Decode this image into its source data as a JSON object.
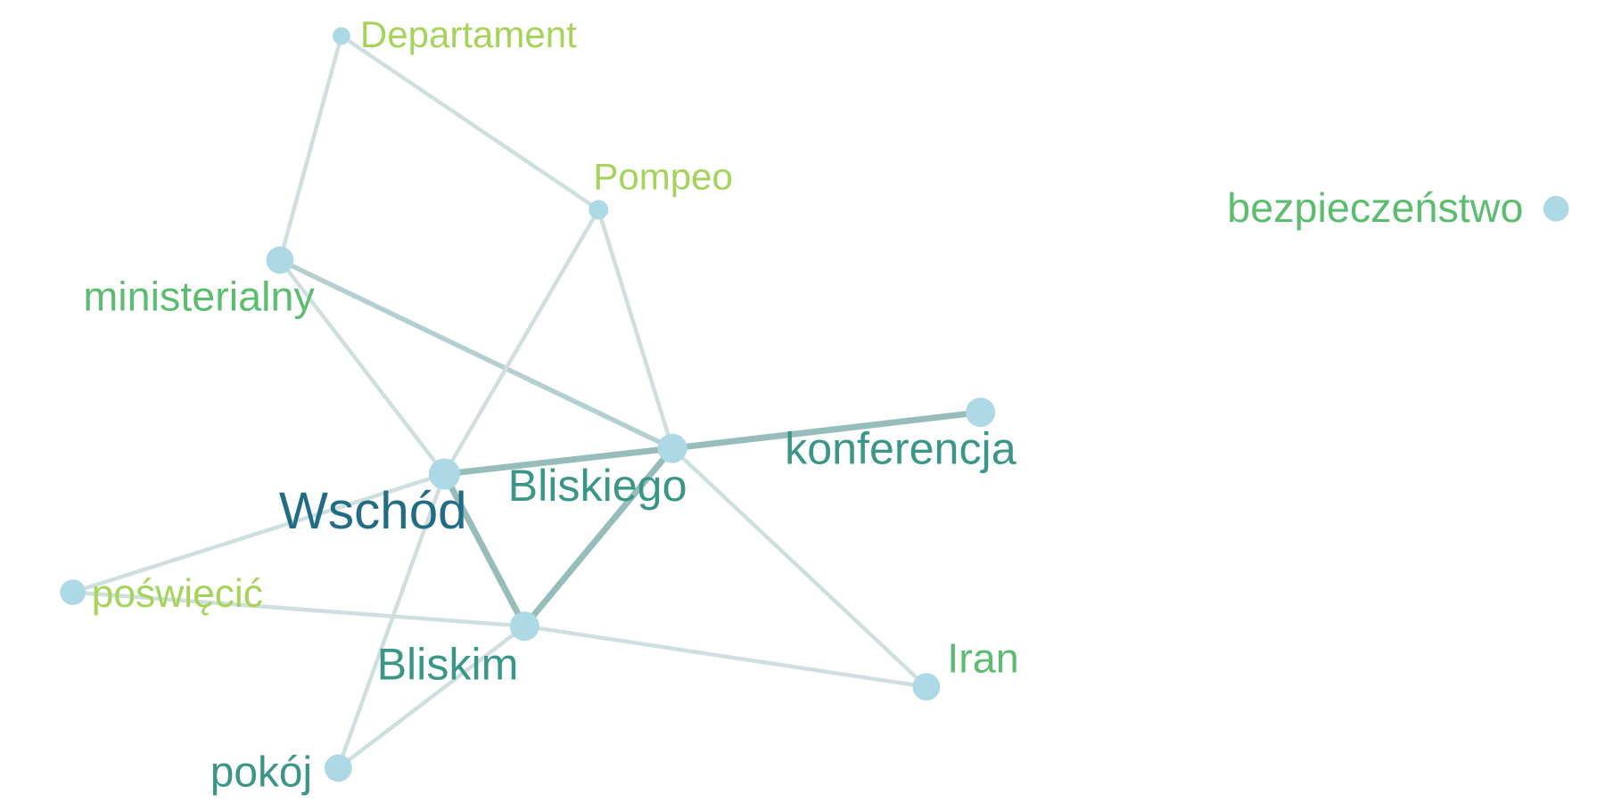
{
  "colors": {
    "background": "#ffffff",
    "node_fill": "#add8e6",
    "edge_light": "#cfdfe0",
    "edge_mid": "#b3cfcf",
    "edge_dark": "#97bdbb",
    "label_lightgreen": "#a6d35a",
    "label_green": "#5cbd70",
    "label_teal": "#3a9687",
    "label_darkteal": "#216d85"
  },
  "nodes": [
    {
      "id": "departament",
      "label": "Departament",
      "color": "label_lightgreen"
    },
    {
      "id": "pompeo",
      "label": "Pompeo",
      "color": "label_lightgreen"
    },
    {
      "id": "ministerialny",
      "label": "ministerialny",
      "color": "label_green"
    },
    {
      "id": "bezpieczenstwo",
      "label": "bezpieczeństwo",
      "color": "label_green"
    },
    {
      "id": "konferencja",
      "label": "konferencja",
      "color": "label_teal"
    },
    {
      "id": "bliskiego",
      "label": "Bliskiego",
      "color": "label_teal"
    },
    {
      "id": "wschod",
      "label": "Wschód",
      "color": "label_darkteal"
    },
    {
      "id": "poswiecic",
      "label": "poświęcić",
      "color": "label_lightgreen"
    },
    {
      "id": "bliskim",
      "label": "Bliskim",
      "color": "label_teal"
    },
    {
      "id": "iran",
      "label": "Iran",
      "color": "label_green"
    },
    {
      "id": "pokoj",
      "label": "pokój",
      "color": "label_teal"
    }
  ],
  "edges": [
    {
      "source": "departament",
      "target": "ministerialny",
      "strength": "light"
    },
    {
      "source": "departament",
      "target": "pompeo",
      "strength": "light"
    },
    {
      "source": "ministerialny",
      "target": "bliskiego",
      "strength": "mid"
    },
    {
      "source": "ministerialny",
      "target": "wschod",
      "strength": "light"
    },
    {
      "source": "pompeo",
      "target": "wschod",
      "strength": "light"
    },
    {
      "source": "pompeo",
      "target": "bliskiego",
      "strength": "light"
    },
    {
      "source": "wschod",
      "target": "bliskiego",
      "strength": "dark"
    },
    {
      "source": "bliskiego",
      "target": "konferencja",
      "strength": "dark"
    },
    {
      "source": "bliskiego",
      "target": "bliskim",
      "strength": "dark"
    },
    {
      "source": "bliskiego",
      "target": "iran",
      "strength": "light"
    },
    {
      "source": "wschod",
      "target": "bliskim",
      "strength": "dark"
    },
    {
      "source": "wschod",
      "target": "poswiecic",
      "strength": "light"
    },
    {
      "source": "wschod",
      "target": "pokoj",
      "strength": "light"
    },
    {
      "source": "poswiecic",
      "target": "bliskim",
      "strength": "light"
    },
    {
      "source": "bliskim",
      "target": "iran",
      "strength": "light"
    },
    {
      "source": "bliskim",
      "target": "pokoj",
      "strength": "light"
    }
  ]
}
